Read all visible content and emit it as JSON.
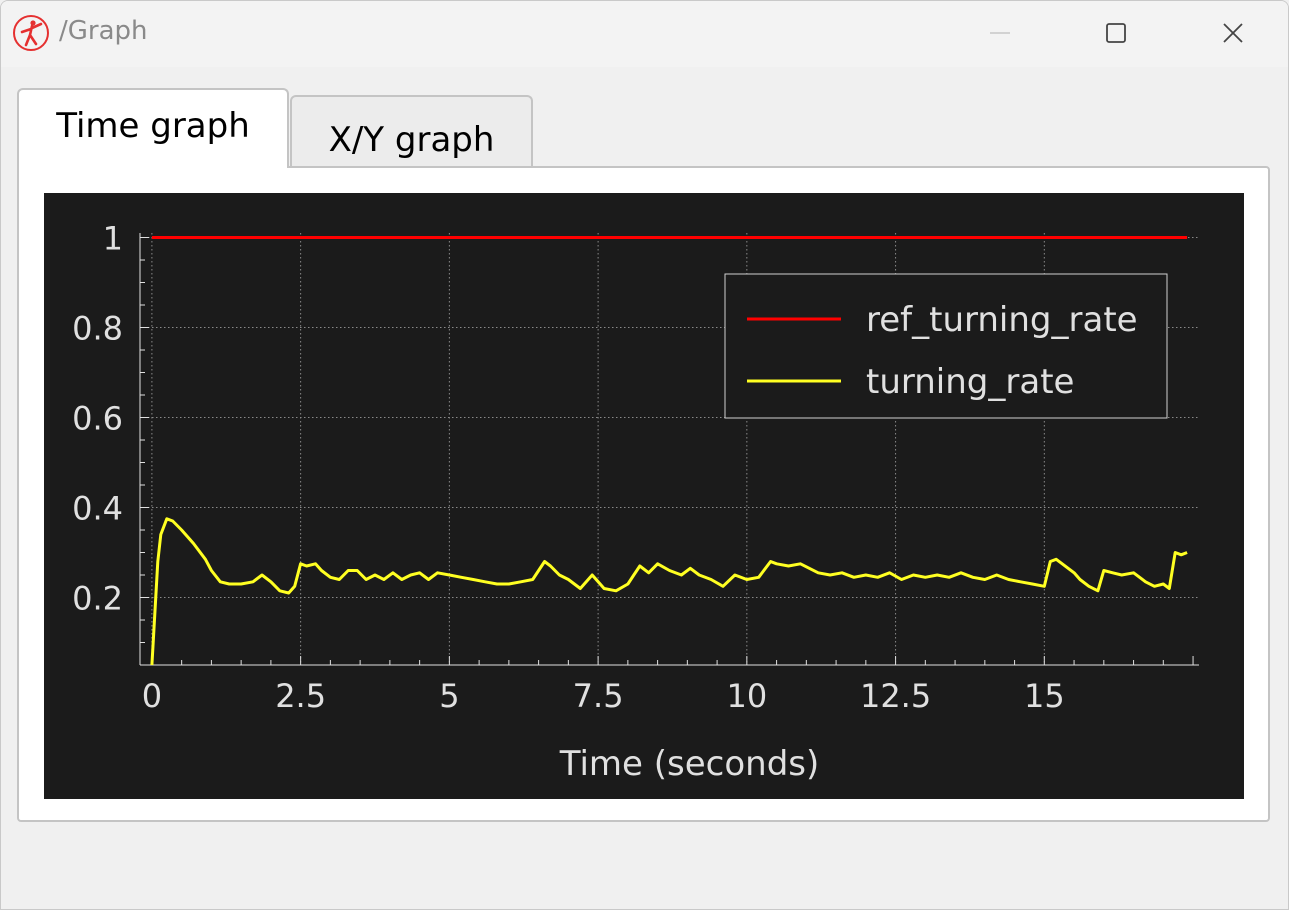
{
  "window": {
    "title": "/Graph"
  },
  "tabs": [
    {
      "label": "Time graph",
      "active": true
    },
    {
      "label": "X/Y graph",
      "active": false
    }
  ],
  "icons": {
    "app": "ballet-dancer-logo-icon",
    "minimize": "minimize-icon",
    "maximize": "maximize-icon",
    "close": "close-icon"
  },
  "colors": {
    "plot_background": "#1b1b1b",
    "ref_series": "#ff0000",
    "actual_series": "#ffff22",
    "axis_text": "#e0e0e0"
  },
  "chart_data": {
    "type": "line",
    "xlabel": "Time (seconds)",
    "ylabel": "",
    "xlim": [
      -0.2,
      17.6
    ],
    "ylim": [
      0.05,
      1.01
    ],
    "xticks": [
      0,
      2.5,
      5,
      7.5,
      10,
      12.5,
      15
    ],
    "xtick_labels": [
      "0",
      "2.5",
      "5",
      "7.5",
      "10",
      "12.5",
      "15"
    ],
    "yticks": [
      0.2,
      0.4,
      0.6,
      0.8,
      1
    ],
    "ytick_labels": [
      "0.2",
      "0.4",
      "0.6",
      "0.8",
      "1"
    ],
    "grid": true,
    "legend_position": "top-right",
    "series": [
      {
        "name": "ref_turning_rate",
        "color": "#ff0000",
        "x": [
          0,
          17.4
        ],
        "y": [
          1,
          1
        ]
      },
      {
        "name": "turning_rate",
        "color": "#ffff22",
        "x": [
          0,
          0.1,
          0.15,
          0.25,
          0.35,
          0.5,
          0.7,
          0.9,
          1.0,
          1.15,
          1.3,
          1.5,
          1.7,
          1.85,
          2.0,
          2.15,
          2.3,
          2.4,
          2.5,
          2.6,
          2.75,
          2.85,
          3.0,
          3.15,
          3.3,
          3.45,
          3.6,
          3.75,
          3.9,
          4.05,
          4.2,
          4.35,
          4.5,
          4.65,
          4.8,
          5.0,
          5.2,
          5.4,
          5.6,
          5.8,
          6.0,
          6.2,
          6.4,
          6.6,
          6.7,
          6.85,
          7.0,
          7.2,
          7.4,
          7.6,
          7.8,
          8.0,
          8.1,
          8.2,
          8.35,
          8.5,
          8.7,
          8.9,
          9.05,
          9.2,
          9.4,
          9.6,
          9.8,
          10.0,
          10.2,
          10.4,
          10.5,
          10.7,
          10.9,
          11.05,
          11.2,
          11.4,
          11.6,
          11.8,
          12.0,
          12.2,
          12.4,
          12.6,
          12.8,
          13.0,
          13.2,
          13.4,
          13.6,
          13.8,
          14.0,
          14.2,
          14.4,
          14.6,
          14.8,
          15.0,
          15.1,
          15.2,
          15.3,
          15.5,
          15.6,
          15.75,
          15.9,
          16.0,
          16.15,
          16.3,
          16.5,
          16.7,
          16.85,
          17.0,
          17.1,
          17.2,
          17.3,
          17.4
        ],
        "y": [
          0.05,
          0.28,
          0.34,
          0.375,
          0.37,
          0.35,
          0.32,
          0.285,
          0.26,
          0.235,
          0.23,
          0.23,
          0.235,
          0.25,
          0.235,
          0.215,
          0.21,
          0.225,
          0.275,
          0.27,
          0.275,
          0.26,
          0.245,
          0.24,
          0.26,
          0.26,
          0.24,
          0.25,
          0.24,
          0.255,
          0.24,
          0.25,
          0.255,
          0.24,
          0.255,
          0.25,
          0.245,
          0.24,
          0.235,
          0.23,
          0.23,
          0.235,
          0.24,
          0.28,
          0.27,
          0.25,
          0.24,
          0.22,
          0.25,
          0.22,
          0.215,
          0.23,
          0.25,
          0.27,
          0.255,
          0.275,
          0.26,
          0.25,
          0.265,
          0.25,
          0.24,
          0.225,
          0.25,
          0.24,
          0.245,
          0.28,
          0.275,
          0.27,
          0.275,
          0.265,
          0.255,
          0.25,
          0.255,
          0.245,
          0.25,
          0.245,
          0.255,
          0.24,
          0.25,
          0.245,
          0.25,
          0.245,
          0.255,
          0.245,
          0.24,
          0.25,
          0.24,
          0.235,
          0.23,
          0.225,
          0.28,
          0.285,
          0.275,
          0.255,
          0.24,
          0.225,
          0.215,
          0.26,
          0.255,
          0.25,
          0.255,
          0.235,
          0.225,
          0.23,
          0.22,
          0.3,
          0.295,
          0.3
        ]
      }
    ]
  }
}
